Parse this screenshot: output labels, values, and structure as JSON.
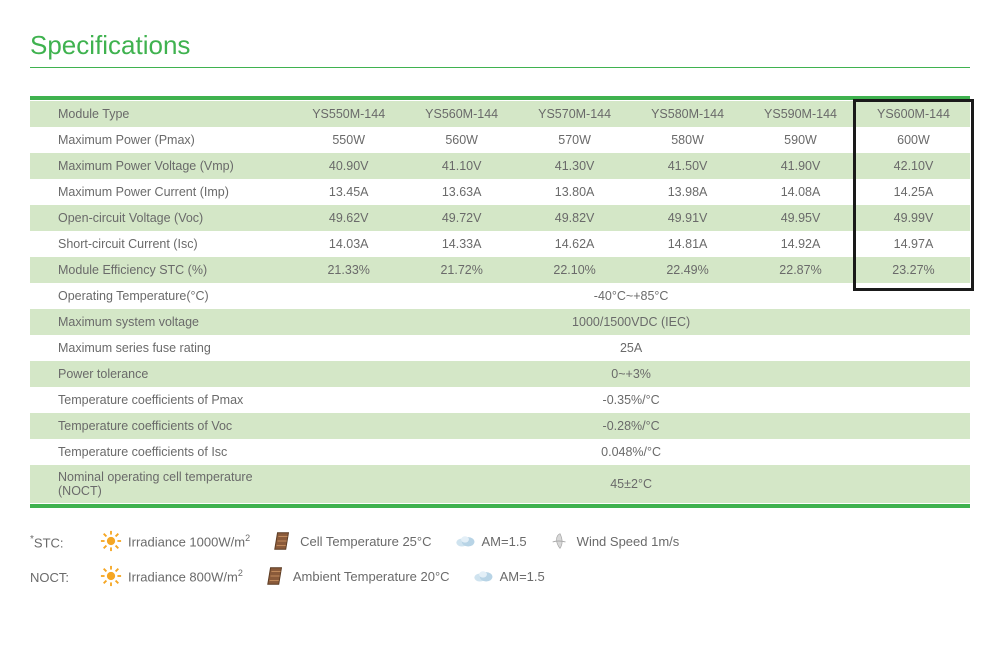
{
  "title": "Specifications",
  "colors": {
    "accent": "#3fb24f",
    "rowShade": "#d4e7c7",
    "text": "#6a6a6a",
    "border": "#3fb24f",
    "highlight": "#1a1a1a"
  },
  "table": {
    "headerLabel": "Module Type",
    "models": [
      "YS550M-144",
      "YS560M-144",
      "YS570M-144",
      "YS580M-144",
      "YS590M-144",
      "YS600M-144"
    ],
    "rows": [
      {
        "label": "Maximum Power (Pmax)",
        "values": [
          "550W",
          "560W",
          "570W",
          "580W",
          "590W",
          "600W"
        ],
        "shaded": false
      },
      {
        "label": "Maximum Power Voltage (Vmp)",
        "values": [
          "40.90V",
          "41.10V",
          "41.30V",
          "41.50V",
          "41.90V",
          "42.10V"
        ],
        "shaded": true
      },
      {
        "label": "Maximum Power Current (Imp)",
        "values": [
          "13.45A",
          "13.63A",
          "13.80A",
          "13.98A",
          "14.08A",
          "14.25A"
        ],
        "shaded": false
      },
      {
        "label": "Open-circuit Voltage (Voc)",
        "values": [
          "49.62V",
          "49.72V",
          "49.82V",
          "49.91V",
          "49.95V",
          "49.99V"
        ],
        "shaded": true
      },
      {
        "label": "Short-circuit Current (Isc)",
        "values": [
          "14.03A",
          "14.33A",
          "14.62A",
          "14.81A",
          "14.92A",
          "14.97A"
        ],
        "shaded": false
      },
      {
        "label": "Module Efficiency STC (%)",
        "values": [
          "21.33%",
          "21.72%",
          "22.10%",
          "22.49%",
          "22.87%",
          "23.27%"
        ],
        "shaded": true
      }
    ],
    "fullRows": [
      {
        "label": "Operating Temperature(°C)",
        "value": "-40°C~+85°C",
        "shaded": false
      },
      {
        "label": "Maximum system voltage",
        "value": "1000/1500VDC (IEC)",
        "shaded": true
      },
      {
        "label": "Maximum series fuse rating",
        "value": "25A",
        "shaded": false
      },
      {
        "label": "Power tolerance",
        "value": "0~+3%",
        "shaded": true
      },
      {
        "label": "Temperature coefficients of Pmax",
        "value": "-0.35%/°C",
        "shaded": false
      },
      {
        "label": "Temperature coefficients of Voc",
        "value": "-0.28%/°C",
        "shaded": true
      },
      {
        "label": "Temperature coefficients of Isc",
        "value": "0.048%/°C",
        "shaded": false
      },
      {
        "label": "Nominal operating cell temperature  (NOCT)",
        "value": "45±2°C",
        "shaded": true
      }
    ],
    "highlightColumnIndex": 5
  },
  "footer": {
    "stc": {
      "label": "STC:",
      "items": [
        {
          "icon": "sun",
          "text": "Irradiance 1000W/m",
          "sup": "2"
        },
        {
          "icon": "cell",
          "text": "Cell Temperature 25°C"
        },
        {
          "icon": "cloud",
          "text": "AM=1.5"
        },
        {
          "icon": "wind",
          "text": "Wind Speed 1m/s"
        }
      ]
    },
    "noct": {
      "label": "NOCT:",
      "items": [
        {
          "icon": "sun",
          "text": "Irradiance 800W/m",
          "sup": "2"
        },
        {
          "icon": "cell",
          "text": "Ambient Temperature 20°C"
        },
        {
          "icon": "cloud",
          "text": "AM=1.5"
        }
      ]
    }
  }
}
